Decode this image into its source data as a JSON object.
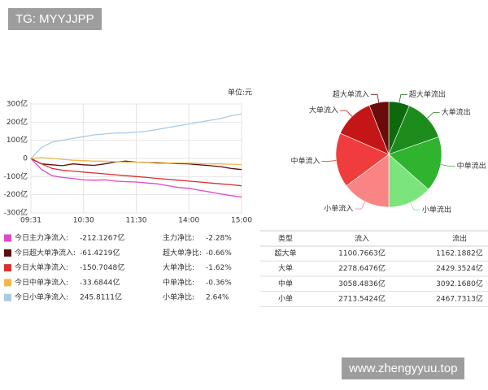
{
  "watermarks": {
    "top": "TG: MYYJJPP",
    "bottom": "www.zhengyyuu.top"
  },
  "chart_data": [
    {
      "type": "line",
      "unit_note": "单位:元",
      "categories": [
        "09:31",
        null,
        null,
        null,
        null,
        "10:30",
        null,
        null,
        null,
        null,
        "11:30",
        null,
        null,
        null,
        null,
        "14:00",
        null,
        null,
        null,
        null,
        "15:00"
      ],
      "ylim": [
        -300,
        300
      ],
      "yticks": [
        {
          "value": 300,
          "label": "300亿"
        },
        {
          "value": 200,
          "label": "200亿"
        },
        {
          "value": 100,
          "label": "100亿"
        },
        0,
        {
          "value": -100,
          "label": "-100亿"
        },
        {
          "value": -200,
          "label": "-200亿"
        },
        {
          "value": -300,
          "label": "-300亿"
        }
      ],
      "grid": true,
      "series": [
        {
          "name": "今日主力净流入:",
          "color": "#e048c8",
          "values": [
            0,
            -60,
            -95,
            -105,
            -110,
            -118,
            -120,
            -118,
            -125,
            -128,
            -130,
            -135,
            -140,
            -150,
            -160,
            -165,
            -175,
            -185,
            -195,
            -205,
            -212.1267
          ]
        },
        {
          "name": "今日超大单净流入:",
          "color": "#5a0e0e",
          "values": [
            0,
            -30,
            -35,
            -40,
            -30,
            -35,
            -38,
            -30,
            -20,
            -15,
            -20,
            -22,
            -25,
            -25,
            -28,
            -30,
            -35,
            -40,
            -45,
            -55,
            -61.4219
          ]
        },
        {
          "name": "今日大单净流入:",
          "color": "#d83030",
          "values": [
            0,
            -30,
            -55,
            -65,
            -70,
            -75,
            -80,
            -85,
            -90,
            -95,
            -100,
            -105,
            -110,
            -115,
            -120,
            -125,
            -130,
            -135,
            -140,
            -145,
            -150.7048
          ]
        },
        {
          "name": "今日中单净流入:",
          "color": "#f0b848",
          "values": [
            0,
            5,
            0,
            -5,
            -10,
            -12,
            -15,
            -15,
            -18,
            -20,
            -20,
            -22,
            -22,
            -24,
            -25,
            -26,
            -28,
            -30,
            -30,
            -32,
            -33.6844
          ]
        },
        {
          "name": "今日小单净流入:",
          "color": "#a8cce8",
          "values": [
            0,
            60,
            90,
            100,
            110,
            120,
            130,
            135,
            140,
            140,
            145,
            150,
            160,
            170,
            180,
            190,
            200,
            210,
            220,
            235,
            245.8111
          ]
        }
      ]
    },
    {
      "type": "pie",
      "categories": [
        "超大单流出",
        "大单流出",
        "中单流出",
        "小单流出",
        "小单流入",
        "中单流入",
        "大单流入",
        "超大单流入"
      ],
      "values": [
        1162.1882,
        2429.3524,
        3092.168,
        2467.7313,
        2713.5424,
        3058.4836,
        2278.6476,
        1100.7663
      ],
      "colors": [
        "#0c6a0c",
        "#1c8c1c",
        "#30b430",
        "#7ce47c",
        "#f88484",
        "#f03c3c",
        "#c41616",
        "#6a0c0c"
      ]
    }
  ],
  "summary": {
    "rows": [
      {
        "amount": "-212.1267亿",
        "ratio_label": "主力净比:",
        "ratio": "-2.28%"
      },
      {
        "amount": "-61.4219亿",
        "ratio_label": "超大单净比:",
        "ratio": "-0.66%"
      },
      {
        "amount": "-150.7048亿",
        "ratio_label": "大单净比:",
        "ratio": "-1.62%"
      },
      {
        "amount": "-33.6844亿",
        "ratio_label": "中单净比:",
        "ratio": "-0.36%"
      },
      {
        "amount": "245.8111亿",
        "ratio_label": "小单净比:",
        "ratio": "2.64%"
      }
    ]
  },
  "table": {
    "header": [
      "类型",
      "流入",
      "流出"
    ],
    "rows": [
      [
        "超大单",
        "1100.7663亿",
        "1162.1882亿"
      ],
      [
        "大单",
        "2278.6476亿",
        "2429.3524亿"
      ],
      [
        "中单",
        "3058.4836亿",
        "3092.1680亿"
      ],
      [
        "小单",
        "2713.5424亿",
        "2467.7313亿"
      ]
    ]
  }
}
